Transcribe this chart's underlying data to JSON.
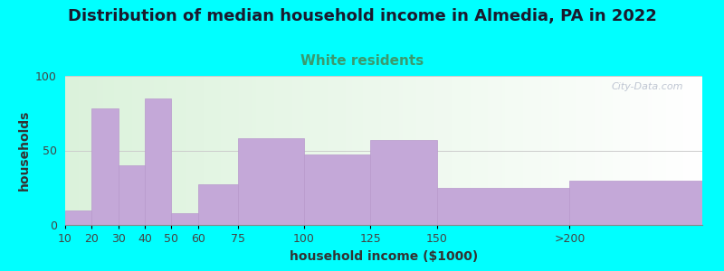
{
  "title": "Distribution of median household income in Almedia, PA in 2022",
  "subtitle": "White residents",
  "xlabel": "household income ($1000)",
  "ylabel": "households",
  "background_outer": "#00FFFF",
  "bar_color": "#C4A8D8",
  "bar_edge_color": "#B899CC",
  "categories": [
    "10",
    "20",
    "30",
    "40",
    "50",
    "60",
    "75",
    "100",
    "125",
    "150",
    ">200"
  ],
  "values": [
    10,
    78,
    40,
    85,
    8,
    27,
    58,
    47,
    57,
    25,
    30
  ],
  "bar_lefts": [
    10,
    20,
    30,
    40,
    50,
    60,
    75,
    100,
    125,
    150,
    200
  ],
  "bar_widths": [
    10,
    10,
    10,
    10,
    10,
    15,
    25,
    25,
    25,
    50,
    50
  ],
  "tick_positions": [
    10,
    20,
    30,
    40,
    50,
    60,
    75,
    100,
    125,
    150,
    200
  ],
  "tick_labels": [
    "10",
    "20",
    "30",
    "40",
    "50",
    "60",
    "75",
    "100",
    "125",
    "150",
    ">200"
  ],
  "xlim": [
    10,
    250
  ],
  "ylim": [
    0,
    100
  ],
  "yticks": [
    0,
    50,
    100
  ],
  "title_fontsize": 13,
  "subtitle_fontsize": 11,
  "subtitle_color": "#3A9A6E",
  "axis_label_fontsize": 10,
  "tick_fontsize": 9,
  "watermark": "City-Data.com"
}
